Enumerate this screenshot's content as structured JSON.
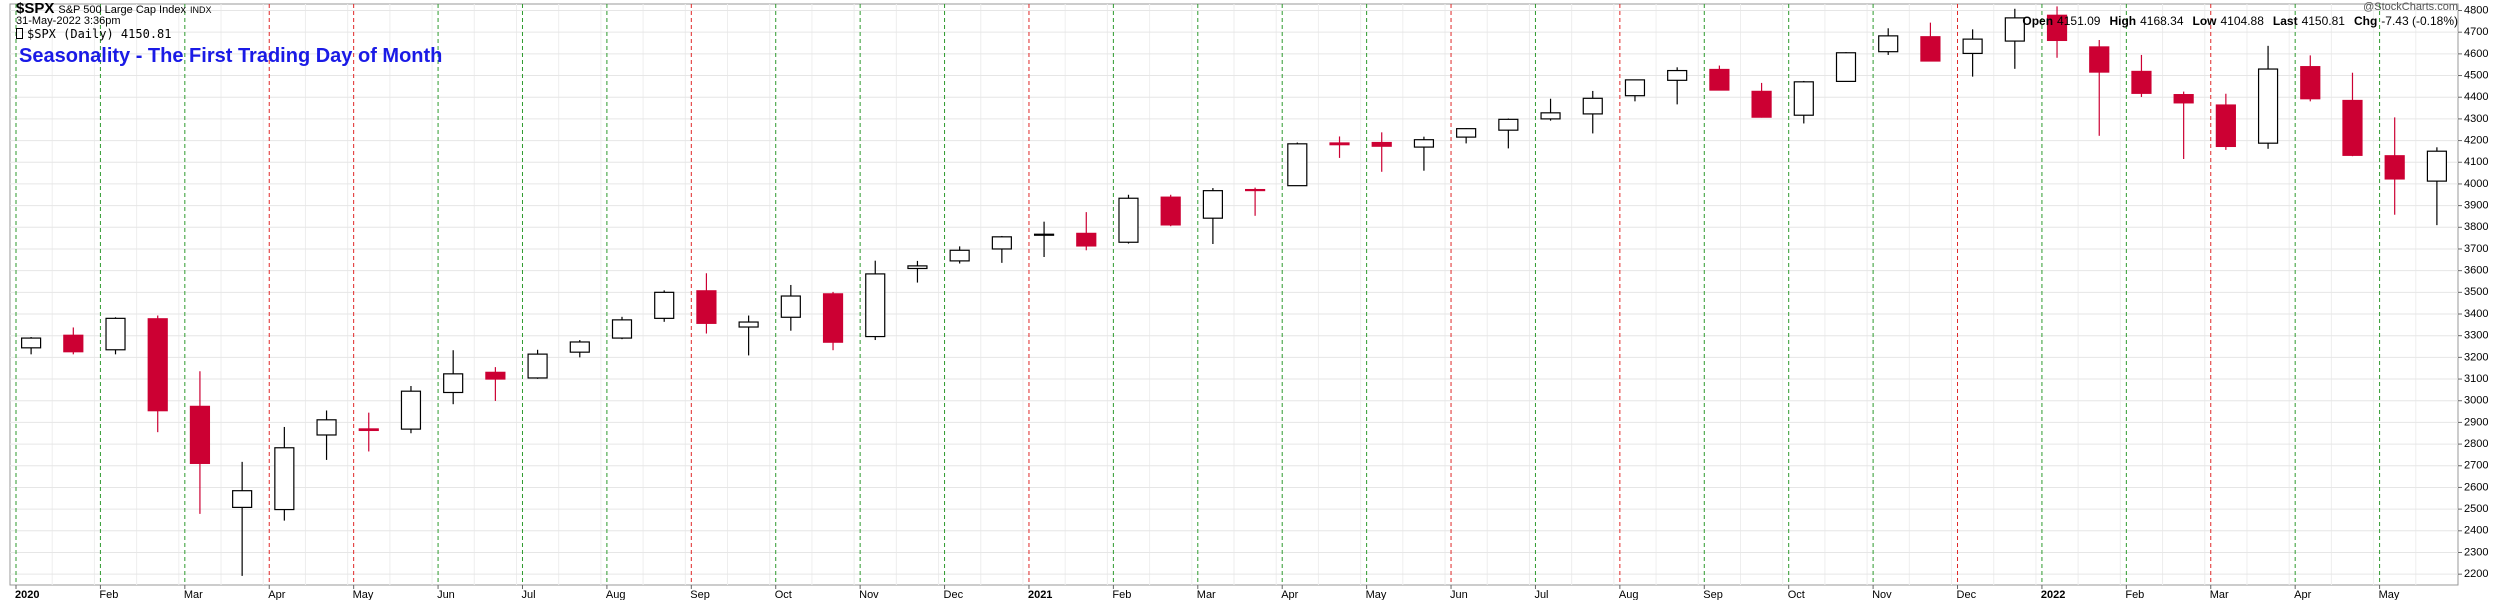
{
  "chart_data": {
    "type": "candlestick",
    "symbol": "$SPX",
    "name": "S&P 500 Large Cap Index",
    "exchange": "INDX",
    "timestamp": "31-May-2022 3:36pm",
    "legend_label": "$SPX (Daily) 4150.81",
    "source": "@StockCharts.com",
    "title": "Seasonality - The First Trading Day of Month",
    "quote": [
      {
        "label": "Open",
        "value": "4151.09"
      },
      {
        "label": "High",
        "value": "4168.34"
      },
      {
        "label": "Low",
        "value": "4104.88"
      },
      {
        "label": "Last",
        "value": "4150.81"
      },
      {
        "label": "Chg",
        "value": "-7.43 (-0.18%)"
      }
    ],
    "categories": [
      "2020",
      null,
      "Feb",
      null,
      "Mar",
      null,
      "Apr",
      null,
      "May",
      null,
      "Jun",
      null,
      "Jul",
      null,
      "Aug",
      null,
      "Sep",
      null,
      "Oct",
      null,
      "Nov",
      null,
      "Dec",
      null,
      "2021",
      null,
      "Feb",
      null,
      "Mar",
      null,
      "Apr",
      null,
      "May",
      null,
      "Jun",
      null,
      "Jul",
      null,
      "Aug",
      null,
      "Sep",
      null,
      "Oct",
      null,
      "Nov",
      null,
      "Dec",
      null,
      "2022",
      null,
      "Feb",
      null,
      "Mar",
      null,
      "Apr",
      null,
      "May",
      null
    ],
    "bold_categories": [
      "2020",
      "2021",
      "2022"
    ],
    "open": [
      3244,
      3302,
      3235,
      3378,
      2974,
      2508,
      2498,
      2842,
      2870,
      2869,
      3038,
      3131,
      3105,
      3224,
      3289,
      3380,
      3507,
      3340,
      3385,
      3493,
      3296,
      3610,
      3645,
      3700,
      3764,
      3772,
      3731,
      3939,
      3842,
      3974,
      3992,
      4189,
      4191,
      4170,
      4216,
      4248,
      4300,
      4323,
      4407,
      4478,
      4528,
      4427,
      4317,
      4473,
      4610,
      4679,
      4602,
      4659,
      4778,
      4632,
      4519,
      4412,
      4364,
      4188,
      4541,
      4385,
      4130,
      4013
    ],
    "high": [
      3294,
      3338,
      3385,
      3393,
      3136,
      2718,
      2879,
      2955,
      2945,
      3068,
      3233,
      3155,
      3235,
      3280,
      3387,
      3509,
      3588,
      3393,
      3534,
      3502,
      3646,
      3645,
      3712,
      3760,
      3826,
      3870,
      3950,
      3950,
      3981,
      3983,
      4191,
      4219,
      4238,
      4218,
      4257,
      4302,
      4393,
      4429,
      4481,
      4538,
      4546,
      4466,
      4475,
      4608,
      4718,
      4744,
      4713,
      4808,
      4819,
      4664,
      4595,
      4426,
      4416,
      4637,
      4593,
      4513,
      4307,
      4169
    ],
    "low": [
      3214,
      3214,
      3214,
      2855,
      2478,
      2192,
      2447,
      2727,
      2766,
      2850,
      2984,
      2999,
      3101,
      3200,
      3284,
      3364,
      3310,
      3209,
      3323,
      3233,
      3280,
      3545,
      3633,
      3636,
      3663,
      3694,
      3725,
      3805,
      3723,
      3853,
      3992,
      4120,
      4056,
      4061,
      4187,
      4164,
      4292,
      4233,
      4381,
      4367,
      4447,
      4306,
      4279,
      4473,
      4595,
      4585,
      4495,
      4531,
      4582,
      4222,
      4401,
      4115,
      4157,
      4162,
      4381,
      4128,
      3858,
      3810
    ],
    "close": [
      3289,
      3226,
      3380,
      2954,
      2711,
      2585,
      2783,
      2912,
      2863,
      3044,
      3124,
      3100,
      3215,
      3271,
      3373,
      3500,
      3357,
      3363,
      3483,
      3270,
      3585,
      3622,
      3694,
      3756,
      3768,
      3714,
      3934,
      3811,
      3969,
      3973,
      4185,
      4181,
      4174,
      4204,
      4255,
      4298,
      4328,
      4395,
      4480,
      4523,
      4433,
      4308,
      4471,
      4605,
      4683,
      4567,
      4668,
      4766,
      4662,
      4516,
      4418,
      4374,
      4173,
      4530,
      4393,
      4132,
      4023,
      4151
    ],
    "up_color": "#000000",
    "down_color": "#cc0033",
    "month_line_colors": [
      "#2e9a2e",
      "#2e9a2e",
      "#2e9a2e",
      "#e02828",
      "#e02828",
      "#2e9a2e",
      "#2e9a2e",
      "#2e9a2e",
      "#e02828",
      "#2e9a2e",
      "#2e9a2e",
      "#2e9a2e",
      "#e02828",
      "#2e9a2e",
      "#2e9a2e",
      "#2e9a2e",
      "#2e9a2e",
      "#e02828",
      "#2e9a2e",
      "#e02828",
      "#2e9a2e",
      "#2e9a2e",
      "#2e9a2e",
      "#e02828",
      "#2e9a2e",
      "#2e9a2e",
      "#e02828",
      "#2e9a2e",
      "#2e9a2e"
    ],
    "ylim": [
      2150,
      4830
    ],
    "yticks": [
      2200,
      2300,
      2400,
      2500,
      2600,
      2700,
      2800,
      2900,
      3000,
      3100,
      3200,
      3300,
      3400,
      3500,
      3600,
      3700,
      3800,
      3900,
      4000,
      4100,
      4200,
      4300,
      4400,
      4500,
      4600,
      4700,
      4800
    ],
    "grid": true
  }
}
